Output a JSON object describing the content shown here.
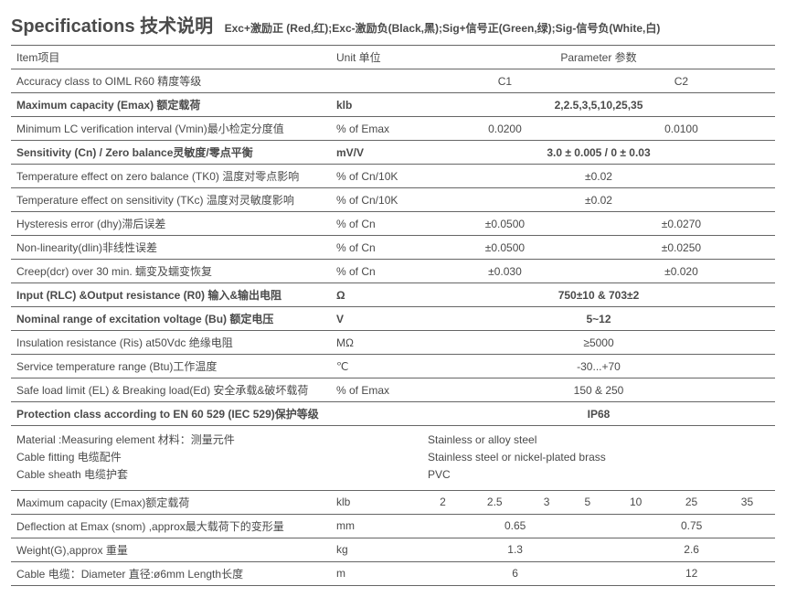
{
  "header": {
    "title": "Specifications 技术说明",
    "subtitle": "Exc+激励正 (Red,红);Exc-激励负(Black,黑);Sig+信号正(Green,绿);Sig-信号负(White,白)"
  },
  "colHeaders": {
    "item": "Item项目",
    "unit": "Unit 单位",
    "parameter": "Parameter 参数"
  },
  "rows": {
    "accuracy": {
      "label": "Accuracy class to OIML R60 精度等级",
      "unit": "",
      "c1": "C1",
      "c2": "C2"
    },
    "emax": {
      "label": "Maximum  capacity (Emax) 额定载荷",
      "unit": "klb",
      "value": "2,2.5,3,5,10,25,35"
    },
    "vmin": {
      "label": "Minimum LC verification interval (Vmin)最小检定分度值",
      "unit": "% of Emax",
      "c1": "0.0200",
      "c2": "0.0100"
    },
    "sens": {
      "label": "Sensitivity (Cn) / Zero balance灵敏度/零点平衡",
      "unit": "mV/V",
      "value": "3.0 ± 0.005 / 0 ± 0.03"
    },
    "tk0": {
      "label": "Temperature effect on zero balance  (TK0) 温度对零点影响",
      "unit": "% of Cn/10K",
      "value": "±0.02"
    },
    "tkc": {
      "label": "Temperature effect on sensitivity (TKc) 温度对灵敏度影响",
      "unit": "% of Cn/10K",
      "value": "±0.02"
    },
    "hyst": {
      "label": "Hysteresis error (dhy)滞后误差",
      "unit": "% of Cn",
      "c1": "±0.0500",
      "c2": "±0.0270"
    },
    "nonlin": {
      "label": "Non-linearity(dlin)非线性误差",
      "unit": "% of Cn",
      "c1": "±0.0500",
      "c2": "±0.0250"
    },
    "creep": {
      "label": "Creep(dcr) over 30 min. 蠕变及蠕变恢复",
      "unit": "% of Cn",
      "c1": "±0.030",
      "c2": "±0.020"
    },
    "resist": {
      "label": "Input  (RLC) &Output resistance (R0) 输入&输出电阻",
      "unit": "Ω",
      "value": "750±10 & 703±2"
    },
    "excite": {
      "label": "Nominal range of excitation voltage  (Bu) 额定电压",
      "unit": "V",
      "value": "5~12"
    },
    "insul": {
      "label": "Insulation  resistance (Ris) at50Vdc 绝缘电阻",
      "unit": "MΩ",
      "value": "≥5000"
    },
    "temp": {
      "label": "Service temperature range  (Btu)工作温度",
      "unit": "℃",
      "value": "-30...+70"
    },
    "safe": {
      "label": "Safe load limit (EL) & Breaking load(Ed) 安全承载&破坏载荷",
      "unit": "% of Emax",
      "value": "150 & 250"
    },
    "protect": {
      "label": "Protection class according to EN 60 529  (IEC 529)保护等级",
      "unit": "",
      "value": "IP68"
    },
    "material": {
      "l1": "Material :Measuring element 材料：测量元件",
      "l2": "Cable fitting 电缆配件",
      "l3": "Cable sheath 电缆护套",
      "v1": "Stainless or alloy steel",
      "v2": "Stainless steel or  nickel-plated brass",
      "v3": "PVC"
    },
    "emax2": {
      "label": "Maximum  capacity (Emax)额定载荷",
      "unit": "klb",
      "v1": "2",
      "v2": "2.5",
      "v3": "3",
      "v4": "5",
      "v5": "10",
      "v6": "25",
      "v7": "35"
    },
    "deflect": {
      "label": "Deflection at  Emax (snom) ,approx最大载荷下的变形量",
      "unit": "mm",
      "g1": "0.65",
      "g2": "0.75"
    },
    "weight": {
      "label": "Weight(G),approx 重量",
      "unit": "kg",
      "g1": "1.3",
      "g2": "2.6"
    },
    "cable": {
      "label": "Cable 电缆：Diameter 直径:ø6mm Length长度",
      "unit": "m",
      "g1": "6",
      "g2": "12"
    }
  }
}
